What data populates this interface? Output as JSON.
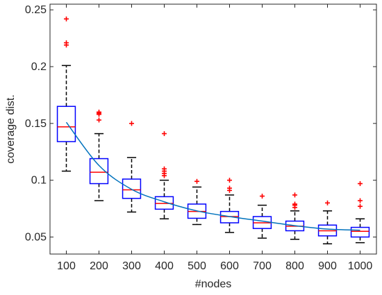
{
  "chart_data": {
    "type": "boxplot",
    "xlabel": "#nodes",
    "ylabel": "coverage dist.",
    "categories": [
      "100",
      "200",
      "300",
      "400",
      "500",
      "600",
      "700",
      "800",
      "900",
      "1000"
    ],
    "ylim": [
      0.035,
      0.255
    ],
    "yticks": [
      0.05,
      0.1,
      0.15,
      0.2,
      0.25
    ],
    "ytick_labels": [
      "0.05",
      "0.1",
      "0.15",
      "0.2",
      "0.25"
    ],
    "grid": false,
    "legend": "none",
    "boxes": [
      {
        "category": "100",
        "whisker_low": 0.108,
        "q1": 0.134,
        "median": 0.147,
        "q3": 0.165,
        "whisker_high": 0.201,
        "outliers": [
          0.219,
          0.221,
          0.242
        ]
      },
      {
        "category": "200",
        "whisker_low": 0.082,
        "q1": 0.097,
        "median": 0.107,
        "q3": 0.119,
        "whisker_high": 0.141,
        "outliers": [
          0.153,
          0.158,
          0.159,
          0.16
        ]
      },
      {
        "category": "300",
        "whisker_low": 0.072,
        "q1": 0.084,
        "median": 0.0915,
        "q3": 0.101,
        "whisker_high": 0.12,
        "outliers": [
          0.15
        ]
      },
      {
        "category": "400",
        "whisker_low": 0.066,
        "q1": 0.0745,
        "median": 0.0795,
        "q3": 0.0855,
        "whisker_high": 0.1,
        "outliers": [
          0.104,
          0.106,
          0.108,
          0.11,
          0.141
        ]
      },
      {
        "category": "500",
        "whisker_low": 0.061,
        "q1": 0.0665,
        "median": 0.0725,
        "q3": 0.079,
        "whisker_high": 0.094,
        "outliers": [
          0.099
        ]
      },
      {
        "category": "600",
        "whisker_low": 0.054,
        "q1": 0.0625,
        "median": 0.068,
        "q3": 0.0725,
        "whisker_high": 0.087,
        "outliers": [
          0.091,
          0.093,
          0.1
        ]
      },
      {
        "category": "700",
        "whisker_low": 0.049,
        "q1": 0.0575,
        "median": 0.0625,
        "q3": 0.068,
        "whisker_high": 0.078,
        "outliers": [
          0.086
        ]
      },
      {
        "category": "800",
        "whisker_low": 0.048,
        "q1": 0.0555,
        "median": 0.0595,
        "q3": 0.064,
        "whisker_high": 0.073,
        "outliers": [
          0.076,
          0.078,
          0.079,
          0.087
        ]
      },
      {
        "category": "900",
        "whisker_low": 0.044,
        "q1": 0.051,
        "median": 0.0555,
        "q3": 0.0605,
        "whisker_high": 0.073,
        "outliers": [
          0.08
        ]
      },
      {
        "category": "1000",
        "whisker_low": 0.045,
        "q1": 0.05,
        "median": 0.055,
        "q3": 0.0585,
        "whisker_high": 0.066,
        "outliers": [
          0.077,
          0.082,
          0.097
        ]
      }
    ],
    "trend_line": {
      "values": [
        0.151,
        0.113,
        0.092,
        0.081,
        0.073,
        0.068,
        0.064,
        0.06,
        0.057,
        0.056
      ]
    },
    "colors": {
      "box": "#0000ff",
      "median": "#ff0000",
      "whisker": "#000000",
      "outlier": "#ff0000",
      "trend": "#0072bd",
      "axis": "#262626"
    }
  }
}
